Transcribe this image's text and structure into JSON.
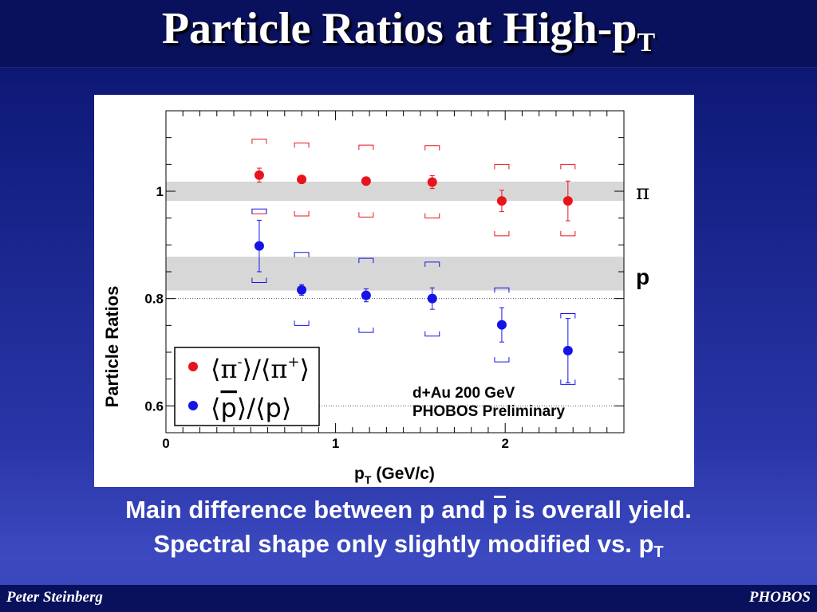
{
  "slide": {
    "title_main": "Particle Ratios at High-p",
    "title_sub": "T",
    "caption_line1_a": "Main difference between p and ",
    "caption_line1_pbar": "p",
    "caption_line1_b": " is overall yield.",
    "caption_line2": "Spectral shape only slightly modified vs. p",
    "caption_line2_sub": "T",
    "footer_left": "Peter Steinberg",
    "footer_right": "PHOBOS"
  },
  "chart_data": {
    "type": "scatter",
    "xlabel": "p",
    "xlabel_sub": "T",
    "xlabel_unit": "(GeV/c)",
    "ylabel": "Particle Ratios",
    "xlim": [
      0,
      2.7
    ],
    "ylim": [
      0.55,
      1.15
    ],
    "x_ticks": [
      "0",
      "1",
      "2"
    ],
    "y_ticks": [
      "0.6",
      "0.8",
      "1"
    ],
    "annotation_line1": "d+Au 200 GeV",
    "annotation_line2": "PHOBOS Preliminary",
    "band_labels": [
      "π",
      "p"
    ],
    "bands": [
      {
        "label": "π",
        "y_low": 0.982,
        "y_high": 1.018
      },
      {
        "label": "p",
        "y_low": 0.815,
        "y_high": 0.878
      }
    ],
    "series": [
      {
        "name": "⟨π⁻⟩/⟨π⁺⟩",
        "color": "#e8141c",
        "x": [
          0.55,
          0.8,
          1.18,
          1.57,
          1.98,
          2.37
        ],
        "y": [
          1.03,
          1.022,
          1.019,
          1.017,
          0.982,
          0.982
        ],
        "stat_err": [
          0.013,
          0.006,
          0.006,
          0.012,
          0.02,
          0.037
        ],
        "sys_low": [
          0.958,
          0.954,
          0.952,
          0.95,
          0.917,
          0.917
        ],
        "sys_high": [
          1.097,
          1.09,
          1.086,
          1.085,
          1.05,
          1.05
        ]
      },
      {
        "name": "⟨p̄⟩/⟨p⟩",
        "color": "#1414e6",
        "x": [
          0.55,
          0.8,
          1.18,
          1.57,
          1.98,
          2.37
        ],
        "y": [
          0.898,
          0.816,
          0.806,
          0.8,
          0.751,
          0.703
        ],
        "stat_err": [
          0.048,
          0.01,
          0.012,
          0.02,
          0.032,
          0.06
        ],
        "sys_low": [
          0.83,
          0.75,
          0.737,
          0.73,
          0.682,
          0.64
        ],
        "sys_high": [
          0.967,
          0.886,
          0.875,
          0.868,
          0.82,
          0.772
        ]
      }
    ]
  }
}
